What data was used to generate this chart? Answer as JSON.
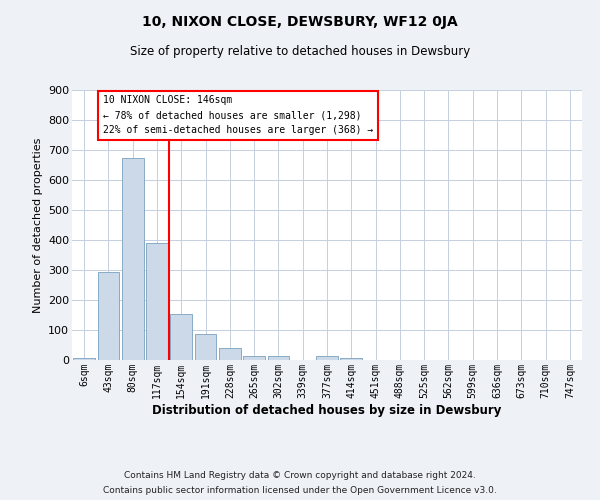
{
  "title": "10, NIXON CLOSE, DEWSBURY, WF12 0JA",
  "subtitle": "Size of property relative to detached houses in Dewsbury",
  "xlabel": "Distribution of detached houses by size in Dewsbury",
  "ylabel": "Number of detached properties",
  "bar_labels": [
    "6sqm",
    "43sqm",
    "80sqm",
    "117sqm",
    "154sqm",
    "191sqm",
    "228sqm",
    "265sqm",
    "302sqm",
    "339sqm",
    "377sqm",
    "414sqm",
    "451sqm",
    "488sqm",
    "525sqm",
    "562sqm",
    "599sqm",
    "636sqm",
    "673sqm",
    "710sqm",
    "747sqm"
  ],
  "bar_values": [
    8,
    293,
    675,
    390,
    155,
    87,
    40,
    15,
    12,
    0,
    12,
    8,
    0,
    0,
    0,
    0,
    0,
    0,
    0,
    0,
    0
  ],
  "bar_color": "#ccd9e8",
  "bar_edge_color": "#7aa0bf",
  "red_line_index": 3.5,
  "annotation_title": "10 NIXON CLOSE: 146sqm",
  "annotation_line1": "← 78% of detached houses are smaller (1,298)",
  "annotation_line2": "22% of semi-detached houses are larger (368) →",
  "ylim": [
    0,
    900
  ],
  "yticks": [
    0,
    100,
    200,
    300,
    400,
    500,
    600,
    700,
    800,
    900
  ],
  "footer_line1": "Contains HM Land Registry data © Crown copyright and database right 2024.",
  "footer_line2": "Contains public sector information licensed under the Open Government Licence v3.0.",
  "background_color": "#eef2f7",
  "plot_background_color": "#ffffff",
  "grid_color": "#c5d0e0"
}
